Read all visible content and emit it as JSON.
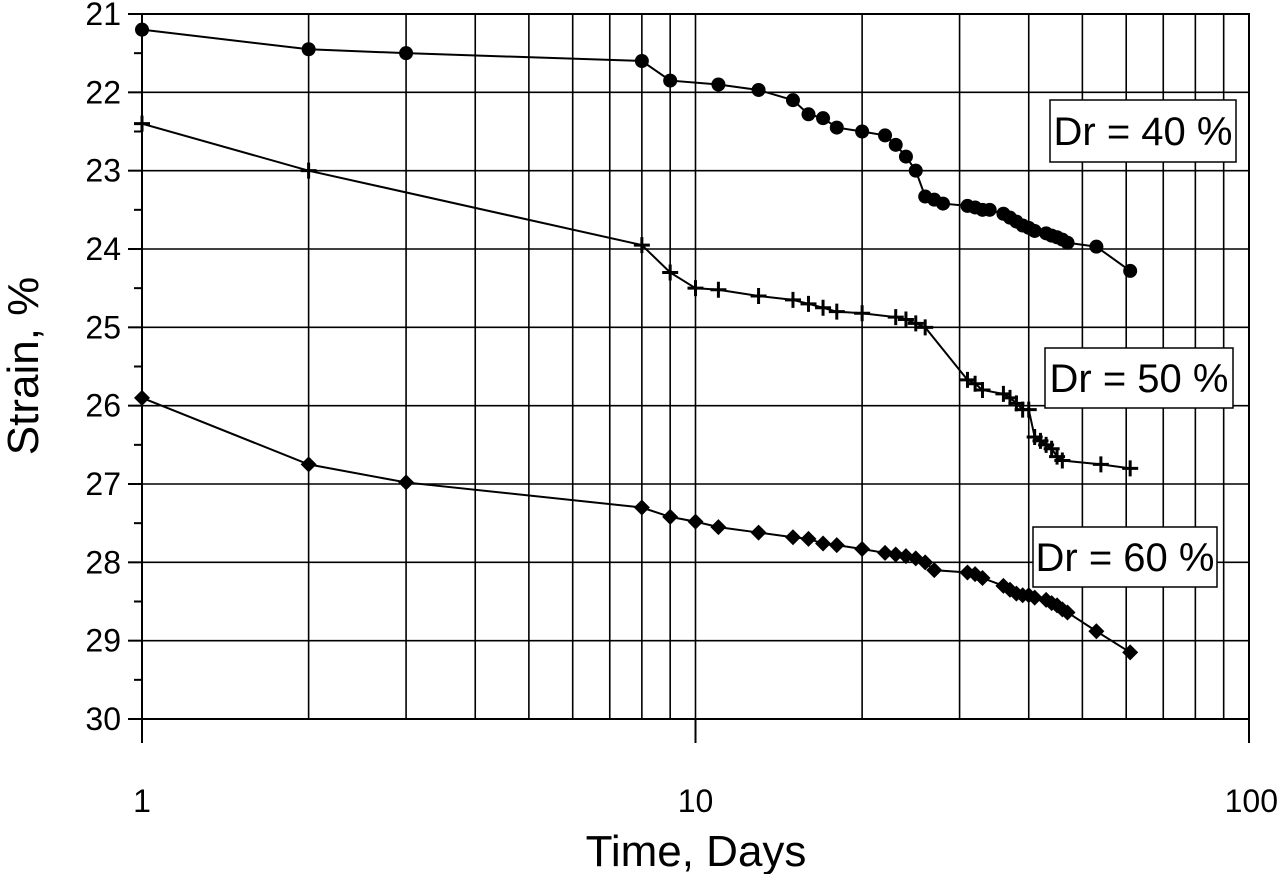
{
  "chart_data": {
    "type": "line",
    "xlabel": "Time,  Days",
    "ylabel": "Strain,  %",
    "x_scale": "log",
    "xlim": [
      1,
      100
    ],
    "ylim": [
      30,
      21
    ],
    "y_inverted": true,
    "grid": true,
    "x_ticks": [
      1,
      10,
      100
    ],
    "x_tick_labels": [
      "1",
      "10",
      "100"
    ],
    "y_ticks": [
      21,
      22,
      23,
      24,
      25,
      26,
      27,
      28,
      29,
      30
    ],
    "y_tick_labels": [
      "21",
      "22",
      "23",
      "24",
      "25",
      "26",
      "27",
      "28",
      "29",
      "30"
    ],
    "series": [
      {
        "name": "Dr = 40 %",
        "marker": "circle",
        "x": [
          1,
          2,
          3,
          8,
          9,
          11,
          13,
          15,
          16,
          17,
          18,
          20,
          22,
          23,
          24,
          25,
          26,
          27,
          28,
          31,
          32,
          33,
          34,
          36,
          37,
          38,
          39,
          40,
          41,
          43,
          44,
          45,
          46,
          47,
          53,
          61
        ],
        "y": [
          21.2,
          21.45,
          21.5,
          21.6,
          21.85,
          21.9,
          21.97,
          22.1,
          22.28,
          22.33,
          22.45,
          22.5,
          22.55,
          22.67,
          22.82,
          23.0,
          23.33,
          23.37,
          23.42,
          23.45,
          23.47,
          23.5,
          23.5,
          23.55,
          23.6,
          23.65,
          23.7,
          23.73,
          23.77,
          23.8,
          23.83,
          23.85,
          23.88,
          23.92,
          23.97,
          24.28
        ]
      },
      {
        "name": "Dr = 50 %",
        "marker": "plus",
        "x": [
          1,
          2,
          8,
          9,
          10,
          11,
          13,
          15,
          16,
          17,
          18,
          20,
          23,
          24,
          25,
          26,
          31,
          32,
          33,
          36,
          37,
          38,
          39,
          40,
          41,
          42,
          43,
          44,
          45,
          46,
          54,
          61
        ],
        "y": [
          22.4,
          23.0,
          23.95,
          24.3,
          24.5,
          24.52,
          24.6,
          24.65,
          24.7,
          24.75,
          24.8,
          24.82,
          24.87,
          24.9,
          24.95,
          25.0,
          25.67,
          25.72,
          25.8,
          25.85,
          25.9,
          25.97,
          26.05,
          26.05,
          26.4,
          26.45,
          26.5,
          26.55,
          26.65,
          26.7,
          26.75,
          26.8
        ]
      },
      {
        "name": "Dr = 60 %",
        "marker": "diamond",
        "x": [
          1,
          2,
          3,
          8,
          9,
          10,
          11,
          13,
          15,
          16,
          17,
          18,
          20,
          22,
          23,
          24,
          25,
          26,
          27,
          31,
          32,
          33,
          36,
          37,
          38,
          39,
          40,
          41,
          43,
          44,
          45,
          46,
          47,
          53,
          61
        ],
        "y": [
          25.9,
          26.75,
          26.98,
          27.3,
          27.42,
          27.48,
          27.55,
          27.62,
          27.68,
          27.7,
          27.76,
          27.78,
          27.83,
          27.88,
          27.9,
          27.92,
          27.95,
          28.0,
          28.1,
          28.13,
          28.15,
          28.2,
          28.3,
          28.35,
          28.4,
          28.42,
          28.42,
          28.45,
          28.48,
          28.52,
          28.55,
          28.6,
          28.64,
          28.88,
          29.15
        ]
      }
    ],
    "annotations": [
      {
        "text": "Dr = 40 %",
        "series": 0,
        "placement": "right, above curve"
      },
      {
        "text": "Dr = 50 %",
        "series": 1,
        "placement": "right, above curve"
      },
      {
        "text": "Dr = 60 %",
        "series": 2,
        "placement": "right, above curve"
      }
    ]
  }
}
